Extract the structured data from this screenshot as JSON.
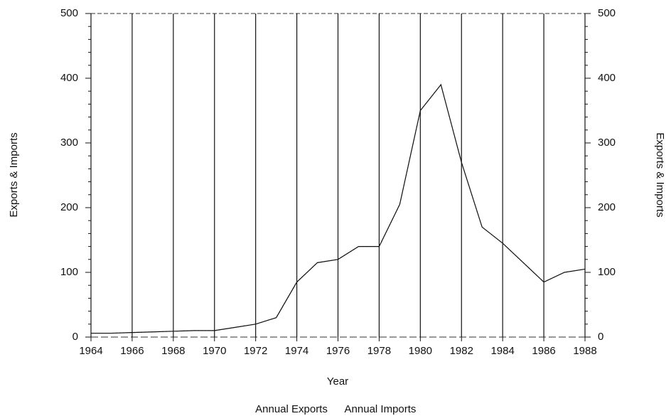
{
  "chart_data": {
    "type": "line",
    "x_label": "Year",
    "y_label": "Exports & Imports",
    "y2_label": "Exports & Imports",
    "x": [
      1964,
      1965,
      1966,
      1967,
      1968,
      1969,
      1970,
      1971,
      1972,
      1973,
      1974,
      1975,
      1976,
      1977,
      1978,
      1979,
      1980,
      1981,
      1982,
      1983,
      1984,
      1985,
      1986,
      1987,
      1988
    ],
    "series": [
      {
        "name": "Annual Exports",
        "color": "#111111",
        "values": [
          6,
          6,
          7,
          8,
          9,
          10,
          10,
          15,
          20,
          30,
          85,
          115,
          120,
          140,
          140,
          205,
          350,
          390,
          270,
          170,
          145,
          115,
          85,
          100,
          105
        ]
      },
      {
        "name": "Annual Imports",
        "color": "#9a9a9a",
        "axis": "y2",
        "values": [
          6,
          6,
          7,
          8,
          9,
          10,
          10,
          15,
          20,
          30,
          85,
          115,
          120,
          140,
          140,
          205,
          350,
          390,
          270,
          170,
          145,
          115,
          85,
          100,
          105
        ]
      }
    ],
    "xlim": [
      1964,
      1988
    ],
    "xticks": [
      1964,
      1966,
      1968,
      1970,
      1972,
      1974,
      1976,
      1978,
      1980,
      1982,
      1984,
      1986,
      1988
    ],
    "ylim": [
      0,
      500
    ],
    "yticks": [
      0,
      100,
      200,
      300,
      400,
      500
    ],
    "y2lim": [
      0,
      500
    ],
    "y2ticks": [
      0,
      100,
      200,
      300,
      400,
      500
    ],
    "grid": "x"
  }
}
